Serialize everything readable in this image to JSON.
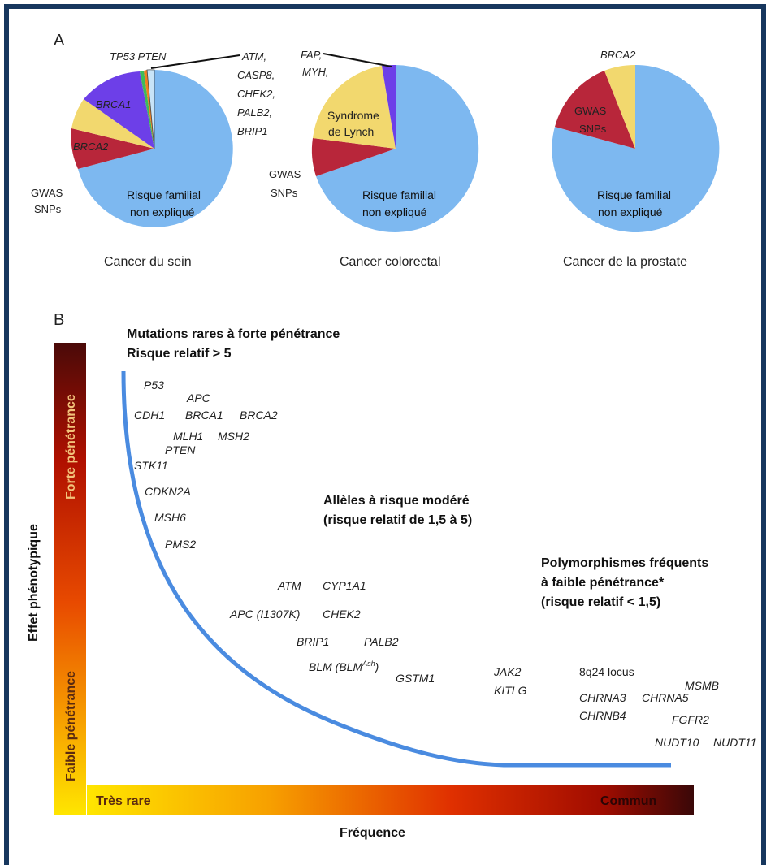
{
  "panel_a": {
    "label": "A",
    "breast": {
      "caption": "Cancer du sein",
      "tp53_pten": "TP53 PTEN",
      "brca1": "BRCA1",
      "brca2": "BRCA2",
      "gwas_line1": "GWAS",
      "gwas_line2": "SNPs",
      "unexplained_line1": "Risque familial",
      "unexplained_line2": "non expliqué",
      "moderate_genes": [
        "ATM,",
        "CASP8,",
        "CHEK2,",
        "PALB2,",
        "BRIP1"
      ]
    },
    "colorectal": {
      "caption": "Cancer colorectal",
      "fap_line1": "FAP,",
      "fap_line2": "MYH,",
      "lynch_line1": "Syndrome",
      "lynch_line2": "de Lynch",
      "gwas_line1": "GWAS",
      "gwas_line2": "SNPs",
      "unexplained_line1": "Risque familial",
      "unexplained_line2": "non expliqué"
    },
    "prostate": {
      "caption": "Cancer de la prostate",
      "brca2": "BRCA2",
      "gwas_line1": "GWAS",
      "gwas_line2": "SNPs",
      "unexplained_line1": "Risque familial",
      "unexplained_line2": "non expliqué"
    }
  },
  "panel_b": {
    "label": "B",
    "high_heading_line1": "Mutations rares à forte pénétrance",
    "high_heading_line2": "Risque relatif > 5",
    "moderate_heading_line1": "Allèles à risque modéré",
    "moderate_heading_line2": "(risque relatif de 1,5 à 5)",
    "low_heading_line1": "Polymorphismes fréquents",
    "low_heading_line2": "à faible pénétrance*",
    "low_heading_line3": "(risque relatif < 1,5)",
    "high_genes": [
      "P53",
      "APC",
      "CDH1",
      "BRCA1",
      "BRCA2",
      "MLH1",
      "MSH2",
      "PTEN",
      "STK11",
      "CDKN2A",
      "MSH6",
      "PMS2"
    ],
    "moderate_genes": [
      "ATM",
      "CYP1A1",
      "APC (I1307K)",
      "CHEK2",
      "BRIP1",
      "PALB2",
      "BLM (BLM",
      "Ash",
      ")",
      "GSTM1"
    ],
    "low_genes": [
      "JAK2",
      "KITLG",
      "8q24 locus",
      "MSMB",
      "CHRNA3",
      "CHRNA5",
      "CHRNB4",
      "FGFR2",
      "NUDT10",
      "NUDT11"
    ],
    "y_axis_title": "Effet phénotypique",
    "y_bar_top": "Forte pénétrance",
    "y_bar_bottom": "Faible pénétrance",
    "x_bar_left": "Très rare",
    "x_bar_right": "Commun",
    "x_axis_title": "Fréquence"
  },
  "colors": {
    "frame": "#17375e",
    "unexplained": "#7db8f0",
    "gwas": "#b8263a",
    "brca2_lynch": "#f2d86e",
    "brca1": "#6d3fe8",
    "curve": "#4a8be0",
    "bar_yellow": "#ffe000",
    "bar_red": "#cc1100",
    "bar_dark": "#3a0a0a"
  }
}
